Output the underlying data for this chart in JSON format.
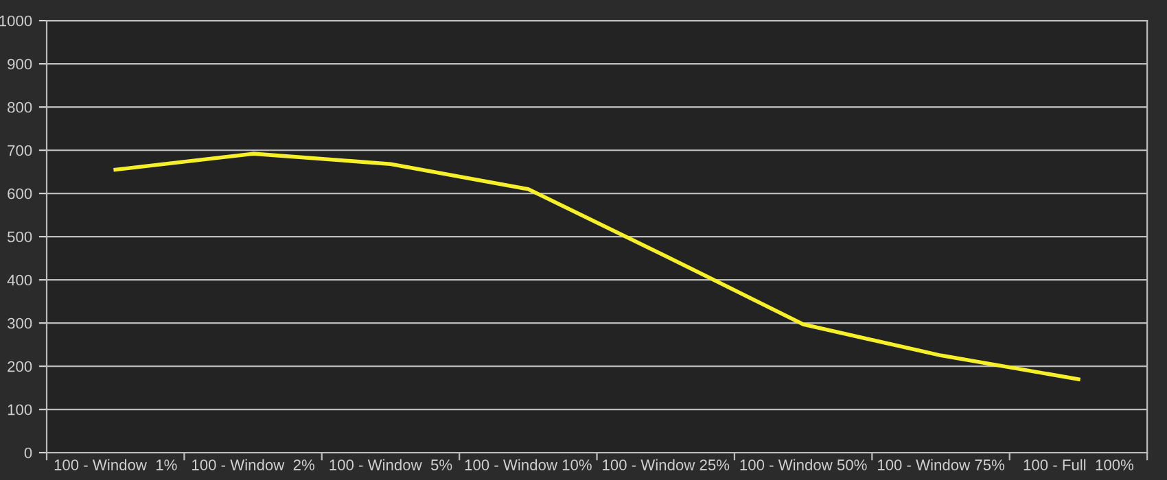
{
  "chart_data": {
    "type": "line",
    "categories": [
      "100 - Window  1%",
      "100 - Window  2%",
      "100 - Window  5%",
      "100 - Window 10%",
      "100 - Window 25%",
      "100 - Window 50%",
      "100 - Window 75%",
      "100 - Full  100%"
    ],
    "series": [
      {
        "color": "#f5f02a",
        "values": [
          655,
          692,
          668,
          610,
          455,
          297,
          225,
          170
        ]
      }
    ],
    "ylim": [
      0,
      1000
    ],
    "yticks": [
      0,
      100,
      200,
      300,
      400,
      500,
      600,
      700,
      800,
      900,
      1000
    ],
    "grid": "y",
    "marker": "none",
    "line_style": "solid"
  }
}
